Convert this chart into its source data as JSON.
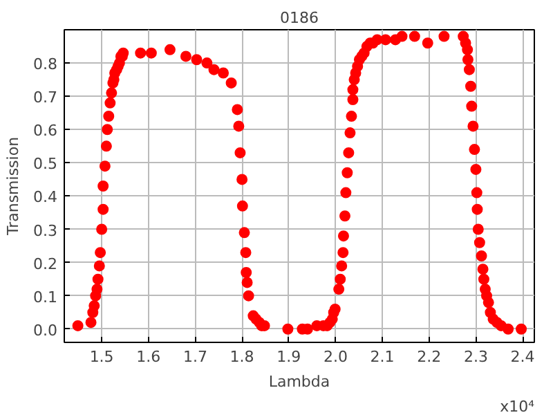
{
  "chart_data": {
    "type": "scatter",
    "title": "0186",
    "xlabel": "Lambda",
    "ylabel": "Transmission",
    "annotations": [
      "x10⁴"
    ],
    "x": [
      1.449,
      1.477,
      1.481,
      1.484,
      1.487,
      1.49,
      1.492,
      1.495,
      1.497,
      1.5,
      1.503,
      1.503,
      1.507,
      1.51,
      1.512,
      1.515,
      1.518,
      1.521,
      1.524,
      1.526,
      1.528,
      1.532,
      1.535,
      1.538,
      1.541,
      1.544,
      1.546,
      1.583,
      1.606,
      1.646,
      1.68,
      1.703,
      1.725,
      1.74,
      1.76,
      1.777,
      1.79,
      1.793,
      1.796,
      1.8,
      1.801,
      1.805,
      1.808,
      1.809,
      1.811,
      1.814,
      1.824,
      1.83,
      1.837,
      1.842,
      1.848,
      1.898,
      1.929,
      1.94,
      1.96,
      1.974,
      1.982,
      1.988,
      1.993,
      1.996,
      1.999,
      2.007,
      2.01,
      2.013,
      2.016,
      2.017,
      2.02,
      2.022,
      2.025,
      2.028,
      2.031,
      2.034,
      2.037,
      2.037,
      2.04,
      2.043,
      2.047,
      2.051,
      2.056,
      2.061,
      2.067,
      2.074,
      2.08,
      2.089,
      2.107,
      2.128,
      2.142,
      2.169,
      2.197,
      2.232,
      2.273,
      2.278,
      2.282,
      2.283,
      2.286,
      2.289,
      2.291,
      2.294,
      2.297,
      2.3,
      2.302,
      2.303,
      2.305,
      2.308,
      2.312,
      2.315,
      2.317,
      2.32,
      2.323,
      2.327,
      2.331,
      2.337,
      2.345,
      2.354,
      2.369,
      2.397
    ],
    "values": [
      0.01,
      0.02,
      0.05,
      0.07,
      0.1,
      0.12,
      0.15,
      0.19,
      0.23,
      0.3,
      0.36,
      0.43,
      0.49,
      0.55,
      0.6,
      0.64,
      0.68,
      0.71,
      0.74,
      0.75,
      0.77,
      0.78,
      0.79,
      0.8,
      0.82,
      0.82,
      0.83,
      0.83,
      0.83,
      0.84,
      0.82,
      0.81,
      0.8,
      0.78,
      0.77,
      0.74,
      0.66,
      0.61,
      0.53,
      0.45,
      0.37,
      0.29,
      0.23,
      0.17,
      0.14,
      0.1,
      0.04,
      0.03,
      0.02,
      0.01,
      0.01,
      0.0,
      0.0,
      0.0,
      0.01,
      0.01,
      0.01,
      0.02,
      0.03,
      0.05,
      0.06,
      0.12,
      0.15,
      0.19,
      0.23,
      0.28,
      0.34,
      0.41,
      0.47,
      0.53,
      0.59,
      0.64,
      0.69,
      0.72,
      0.75,
      0.77,
      0.79,
      0.81,
      0.82,
      0.83,
      0.85,
      0.86,
      0.86,
      0.87,
      0.87,
      0.87,
      0.88,
      0.88,
      0.86,
      0.88,
      0.88,
      0.86,
      0.84,
      0.81,
      0.78,
      0.73,
      0.67,
      0.61,
      0.54,
      0.48,
      0.41,
      0.36,
      0.3,
      0.26,
      0.22,
      0.18,
      0.15,
      0.12,
      0.1,
      0.08,
      0.05,
      0.03,
      0.02,
      0.01,
      0.0,
      0.0
    ],
    "color": "#ff0000",
    "marker": "circle",
    "grid": true,
    "xlim": [
      1.42,
      2.425
    ],
    "ylim": [
      -0.04,
      0.9
    ],
    "xticks": [
      1.5,
      1.6,
      1.7,
      1.8,
      1.9,
      {
        "value": 2.0,
        "label": "2.0"
      },
      2.1,
      2.2,
      2.3,
      2.4
    ],
    "yticks": [
      {
        "value": 0,
        "label": "0.0"
      },
      0.1,
      0.2,
      0.3,
      0.4,
      0.5,
      0.6,
      0.7,
      0.8
    ]
  }
}
